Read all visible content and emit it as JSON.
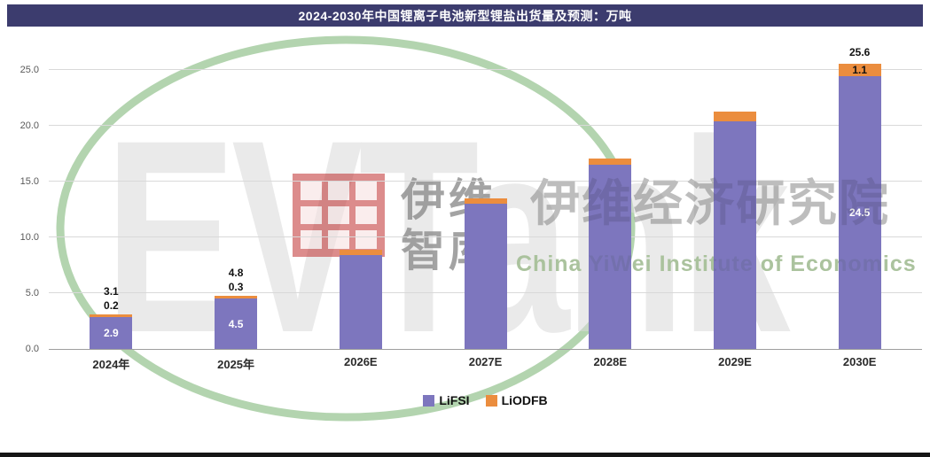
{
  "colors": {
    "title_bar": "#3c3c6e",
    "bar_lifsi": "#7d76be",
    "bar_liodfb": "#eb8d3e"
  },
  "chart_data": {
    "type": "bar",
    "stacked": true,
    "title": "2024-2030年中国锂离子电池新型锂盐出货量及预测：万吨",
    "unit": "万吨",
    "categories": [
      "2024年",
      "2025年",
      "2026E",
      "2027E",
      "2028E",
      "2029E",
      "2030E"
    ],
    "series": [
      {
        "name": "LiFSI",
        "color": "#7d76be",
        "values": [
          2.9,
          4.5,
          8.4,
          13.0,
          16.5,
          20.4,
          24.5
        ]
      },
      {
        "name": "LiODFB",
        "color": "#eb8d3e",
        "values": [
          0.2,
          0.3,
          0.5,
          0.5,
          0.6,
          0.9,
          1.1
        ]
      }
    ],
    "totals": [
      3.1,
      4.8,
      8.9,
      13.5,
      17.1,
      21.3,
      25.6
    ],
    "show_labels": [
      true,
      true,
      false,
      false,
      false,
      false,
      true
    ],
    "y_max": 28.2,
    "yticks": [
      {
        "value": 0,
        "label": "0.0"
      },
      {
        "value": 5,
        "label": "5.0"
      },
      {
        "value": 10,
        "label": "10.0"
      },
      {
        "value": 15,
        "label": "15.0"
      },
      {
        "value": 20,
        "label": "20.0"
      },
      {
        "value": 25,
        "label": "25.0"
      }
    ],
    "grid": true,
    "legend_position": "bottom"
  },
  "watermark": {
    "brand": "EVTank",
    "cn_bold_line1": "伊维",
    "cn_bold_line2": "智库",
    "institute_cn": "伊维经济研究院",
    "institute_en": "China YiWei Institute of Economics"
  }
}
